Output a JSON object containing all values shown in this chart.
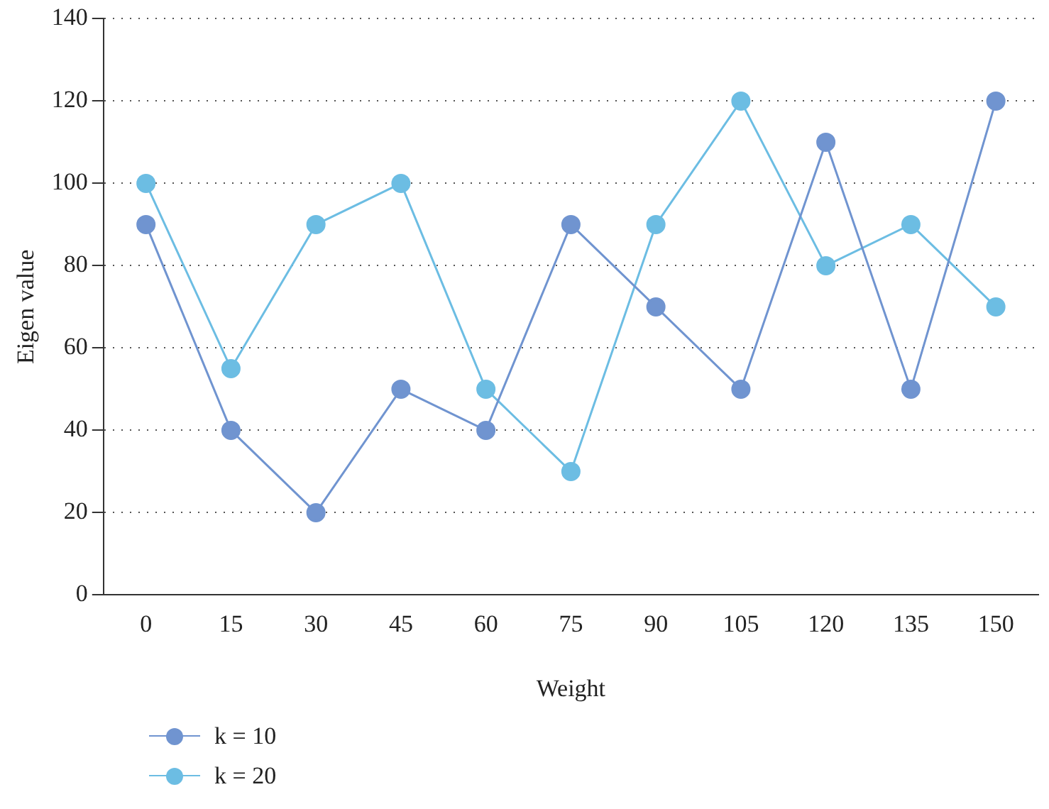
{
  "chart_data": {
    "type": "line",
    "xlabel": "Weight",
    "ylabel": "Eigen value",
    "categories": [
      "0",
      "15",
      "30",
      "45",
      "60",
      "75",
      "90",
      "105",
      "120",
      "135",
      "150"
    ],
    "series": [
      {
        "name": "k = 10",
        "color": "#7094d0",
        "values": [
          90,
          40,
          20,
          50,
          40,
          90,
          70,
          50,
          110,
          50,
          120
        ]
      },
      {
        "name": "k = 20",
        "color": "#6cbde3",
        "values": [
          100,
          55,
          90,
          100,
          50,
          30,
          90,
          120,
          80,
          90,
          70
        ]
      }
    ],
    "ylim": [
      0,
      140
    ],
    "yticks": [
      0,
      20,
      40,
      60,
      80,
      100,
      120,
      140
    ],
    "grid": "y",
    "legend": "bottom left",
    "marker": "circle",
    "line_style": "solid"
  }
}
